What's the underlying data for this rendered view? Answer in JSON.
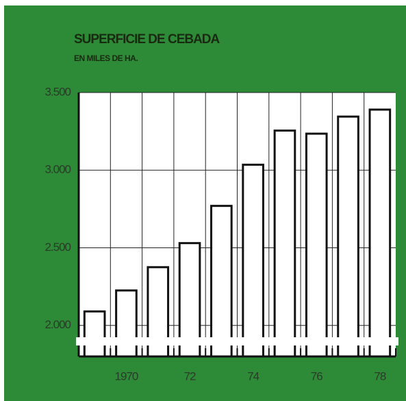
{
  "chart_data": {
    "type": "bar",
    "title": "SUPERFICIE DE CEBADA",
    "subtitle": "EN MILES DE HA.",
    "categories": [
      null,
      "1970",
      null,
      "72",
      null,
      "74",
      null,
      "76",
      null,
      "78"
    ],
    "values": [
      2090,
      2225,
      2375,
      2530,
      2770,
      3035,
      3255,
      3235,
      3345,
      3390
    ],
    "color": "#ffffff",
    "ylim": [
      1800,
      3500
    ],
    "yticks": [
      {
        "value": 2000,
        "label": "2.000"
      },
      {
        "value": 2500,
        "label": "2.500"
      },
      {
        "value": 3000,
        "label": "3.000"
      },
      {
        "value": 3500,
        "label": "3.500"
      }
    ],
    "grid": true
  }
}
